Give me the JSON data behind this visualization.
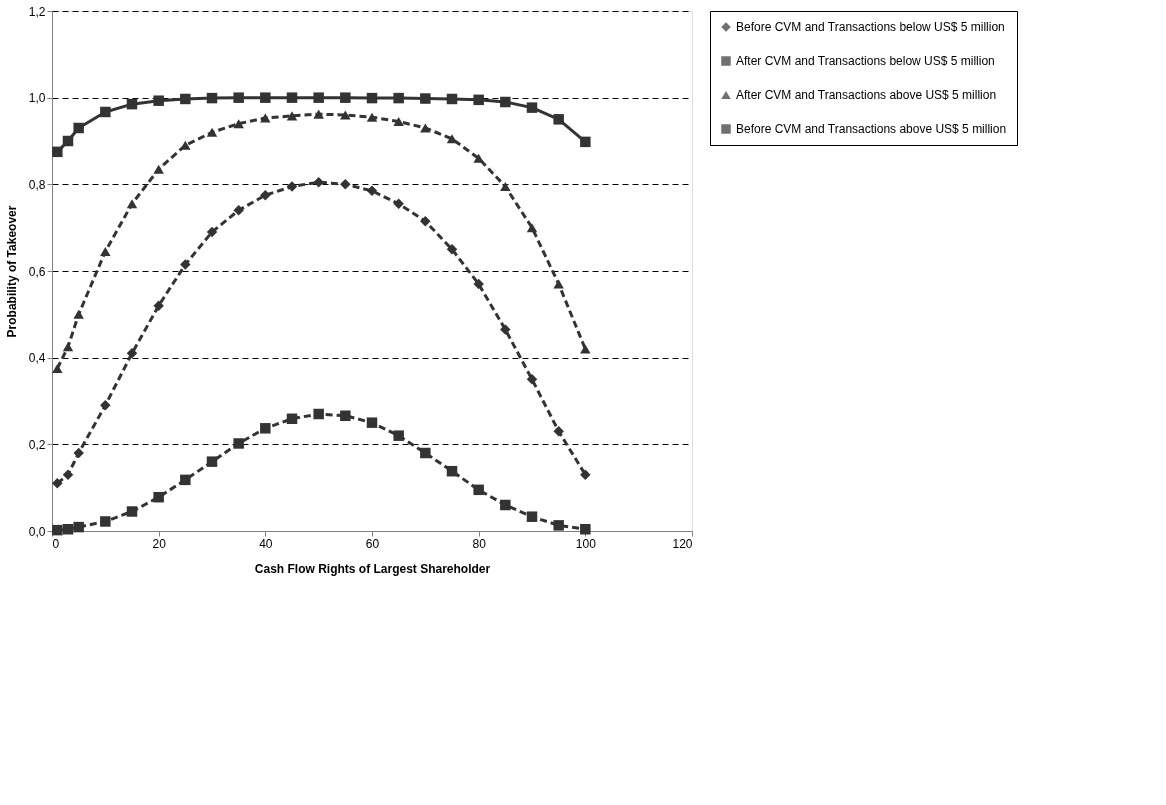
{
  "chart_data": {
    "type": "line",
    "xlabel": "Cash Flow Rights of Largest Shareholder",
    "ylabel": "Probability of Takeover",
    "x": [
      1,
      3,
      5,
      10,
      15,
      20,
      25,
      30,
      35,
      40,
      45,
      50,
      55,
      60,
      65,
      70,
      75,
      80,
      85,
      90,
      95,
      100
    ],
    "series": [
      {
        "name": "Before CVM and Transactions below US$ 5 million",
        "color": "#333333",
        "marker": "diamond",
        "line_style": "dashed",
        "values": [
          0.11,
          0.13,
          0.18,
          0.29,
          0.41,
          0.52,
          0.615,
          0.69,
          0.74,
          0.775,
          0.795,
          0.805,
          0.8,
          0.785,
          0.755,
          0.715,
          0.65,
          0.57,
          0.465,
          0.35,
          0.23,
          0.13
        ]
      },
      {
        "name": "After CVM and Transactions below US$ 5 million",
        "color": "#333333",
        "marker": "square",
        "line_style": "solid",
        "values": [
          0.875,
          0.9,
          0.93,
          0.967,
          0.985,
          0.993,
          0.997,
          0.999,
          1.0,
          1.0,
          1.0,
          1.0,
          1.0,
          0.999,
          0.999,
          0.998,
          0.997,
          0.995,
          0.99,
          0.977,
          0.95,
          0.898
        ]
      },
      {
        "name": "After CVM and Transactions above US$ 5 million",
        "color": "#333333",
        "marker": "triangle",
        "line_style": "dashed",
        "values": [
          0.375,
          0.425,
          0.5,
          0.645,
          0.755,
          0.835,
          0.89,
          0.92,
          0.94,
          0.953,
          0.958,
          0.962,
          0.96,
          0.955,
          0.945,
          0.93,
          0.905,
          0.86,
          0.795,
          0.7,
          0.57,
          0.42
        ]
      },
      {
        "name": "Before CVM and Transactions above US$ 5 million",
        "color": "#333333",
        "marker": "square",
        "line_style": "dashed",
        "values": [
          0.002,
          0.004,
          0.009,
          0.022,
          0.045,
          0.078,
          0.118,
          0.16,
          0.202,
          0.237,
          0.259,
          0.27,
          0.266,
          0.25,
          0.22,
          0.18,
          0.138,
          0.095,
          0.06,
          0.033,
          0.013,
          0.004
        ]
      }
    ],
    "xlim": [
      0,
      120
    ],
    "xticks": [
      0,
      20,
      40,
      60,
      80,
      100,
      120
    ],
    "ylim": [
      0,
      1.2
    ],
    "yticks": [
      {
        "value": 0,
        "label": "0,0"
      },
      {
        "value": 0.2,
        "label": "0,2"
      },
      {
        "value": 0.4,
        "label": "0,4"
      },
      {
        "value": 0.6,
        "label": "0,6"
      },
      {
        "value": 0.8,
        "label": "0,8"
      },
      {
        "value": 1.0,
        "label": "1,0"
      },
      {
        "value": 1.2,
        "label": "1,2"
      }
    ],
    "grid": "y",
    "legend": "right"
  }
}
